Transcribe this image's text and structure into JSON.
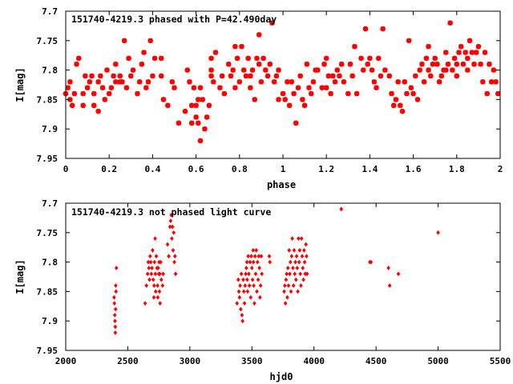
{
  "chart_data": [
    {
      "type": "scatter",
      "title": "151740-4219.3 phased with P=42.490day",
      "xlabel": "phase",
      "ylabel": "I[mag]",
      "xlim": [
        0,
        2
      ],
      "ylim": [
        7.95,
        7.7
      ],
      "y_inverted": true,
      "xticks": [
        0,
        0.2,
        0.4,
        0.6,
        0.8,
        1,
        1.2,
        1.4,
        1.6,
        1.8,
        2
      ],
      "xtick_labels": [
        "0",
        "0.2",
        "0.4",
        "0.6",
        "0.8",
        "1",
        "1.2",
        "1.4",
        "1.6",
        "1.8",
        "2"
      ],
      "yticks": [
        7.7,
        7.75,
        7.8,
        7.85,
        7.9,
        7.95
      ],
      "ytick_labels": [
        "7.7",
        "7.75",
        "7.8",
        "7.85",
        "7.9",
        "7.95"
      ],
      "grid": false,
      "marker": "star",
      "color": "#ff0000",
      "points": [
        [
          0.0,
          7.84
        ],
        [
          0.01,
          7.83
        ],
        [
          0.02,
          7.85
        ],
        [
          0.02,
          7.82
        ],
        [
          0.03,
          7.86
        ],
        [
          0.04,
          7.84
        ],
        [
          0.05,
          7.79
        ],
        [
          0.06,
          7.78
        ],
        [
          0.08,
          7.84
        ],
        [
          0.08,
          7.86
        ],
        [
          0.09,
          7.81
        ],
        [
          0.1,
          7.83
        ],
        [
          0.11,
          7.82
        ],
        [
          0.12,
          7.81
        ],
        [
          0.13,
          7.86
        ],
        [
          0.13,
          7.84
        ],
        [
          0.15,
          7.87
        ],
        [
          0.15,
          7.82
        ],
        [
          0.16,
          7.81
        ],
        [
          0.17,
          7.83
        ],
        [
          0.18,
          7.85
        ],
        [
          0.19,
          7.8
        ],
        [
          0.2,
          7.84
        ],
        [
          0.21,
          7.83
        ],
        [
          0.22,
          7.81
        ],
        [
          0.23,
          7.82
        ],
        [
          0.23,
          7.79
        ],
        [
          0.25,
          7.81
        ],
        [
          0.25,
          7.82
        ],
        [
          0.26,
          7.82
        ],
        [
          0.27,
          7.75
        ],
        [
          0.28,
          7.83
        ],
        [
          0.29,
          7.78
        ],
        [
          0.3,
          7.81
        ],
        [
          0.31,
          7.8
        ],
        [
          0.33,
          7.84
        ],
        [
          0.34,
          7.82
        ],
        [
          0.35,
          7.79
        ],
        [
          0.36,
          7.77
        ],
        [
          0.37,
          7.83
        ],
        [
          0.38,
          7.82
        ],
        [
          0.39,
          7.75
        ],
        [
          0.4,
          7.81
        ],
        [
          0.41,
          7.78
        ],
        [
          0.44,
          7.78
        ],
        [
          0.44,
          7.81
        ],
        [
          0.45,
          7.85
        ],
        [
          0.47,
          7.86
        ],
        [
          0.49,
          7.82
        ],
        [
          0.5,
          7.83
        ],
        [
          0.52,
          7.89
        ],
        [
          0.55,
          7.87
        ],
        [
          0.56,
          7.8
        ],
        [
          0.57,
          7.82
        ],
        [
          0.58,
          7.86
        ],
        [
          0.58,
          7.89
        ],
        [
          0.59,
          7.83
        ],
        [
          0.6,
          7.86
        ],
        [
          0.6,
          7.88
        ],
        [
          0.61,
          7.85
        ],
        [
          0.61,
          7.89
        ],
        [
          0.62,
          7.83
        ],
        [
          0.62,
          7.92
        ],
        [
          0.63,
          7.85
        ],
        [
          0.64,
          7.9
        ],
        [
          0.65,
          7.88
        ],
        [
          0.66,
          7.86
        ],
        [
          0.67,
          7.81
        ],
        [
          0.67,
          7.8
        ],
        [
          0.67,
          7.78
        ],
        [
          0.68,
          7.82
        ],
        [
          0.69,
          7.77
        ],
        [
          0.71,
          7.83
        ],
        [
          0.72,
          7.81
        ],
        [
          0.73,
          7.84
        ],
        [
          0.75,
          7.79
        ],
        [
          0.76,
          7.81
        ],
        [
          0.77,
          7.8
        ],
        [
          0.78,
          7.76
        ],
        [
          0.78,
          7.83
        ],
        [
          0.79,
          7.78
        ],
        [
          0.8,
          7.82
        ],
        [
          0.81,
          7.76
        ],
        [
          0.82,
          7.8
        ],
        [
          0.83,
          7.81
        ],
        [
          0.84,
          7.78
        ],
        [
          0.85,
          7.81
        ],
        [
          0.85,
          7.83
        ],
        [
          0.86,
          7.8
        ],
        [
          0.87,
          7.85
        ],
        [
          0.88,
          7.78
        ],
        [
          0.89,
          7.74
        ],
        [
          0.89,
          7.79
        ],
        [
          0.9,
          7.82
        ],
        [
          0.91,
          7.78
        ],
        [
          0.92,
          7.8
        ],
        [
          0.93,
          7.81
        ],
        [
          0.94,
          7.79
        ],
        [
          0.95,
          7.72
        ],
        [
          0.96,
          7.82
        ],
        [
          0.97,
          7.81
        ],
        [
          0.98,
          7.8
        ],
        [
          0.98,
          7.85
        ],
        [
          1.0,
          7.84
        ],
        [
          1.01,
          7.85
        ],
        [
          1.02,
          7.82
        ],
        [
          1.03,
          7.86
        ],
        [
          1.04,
          7.82
        ],
        [
          1.05,
          7.84
        ],
        [
          1.06,
          7.89
        ],
        [
          1.07,
          7.83
        ],
        [
          1.08,
          7.81
        ],
        [
          1.09,
          7.85
        ],
        [
          1.1,
          7.86
        ],
        [
          1.11,
          7.79
        ],
        [
          1.12,
          7.83
        ],
        [
          1.13,
          7.84
        ],
        [
          1.14,
          7.82
        ],
        [
          1.15,
          7.8
        ],
        [
          1.16,
          7.8
        ],
        [
          1.18,
          7.83
        ],
        [
          1.19,
          7.79
        ],
        [
          1.2,
          7.83
        ],
        [
          1.2,
          7.78
        ],
        [
          1.21,
          7.81
        ],
        [
          1.22,
          7.84
        ],
        [
          1.23,
          7.81
        ],
        [
          1.24,
          7.82
        ],
        [
          1.25,
          7.8
        ],
        [
          1.26,
          7.81
        ],
        [
          1.27,
          7.79
        ],
        [
          1.28,
          7.82
        ],
        [
          1.3,
          7.84
        ],
        [
          1.31,
          7.79
        ],
        [
          1.32,
          7.81
        ],
        [
          1.33,
          7.76
        ],
        [
          1.34,
          7.84
        ],
        [
          1.36,
          7.78
        ],
        [
          1.37,
          7.8
        ],
        [
          1.38,
          7.73
        ],
        [
          1.39,
          7.79
        ],
        [
          1.4,
          7.78
        ],
        [
          1.41,
          7.8
        ],
        [
          1.42,
          7.82
        ],
        [
          1.43,
          7.83
        ],
        [
          1.44,
          7.78
        ],
        [
          1.45,
          7.81
        ],
        [
          1.46,
          7.73
        ],
        [
          1.47,
          7.8
        ],
        [
          1.49,
          7.81
        ],
        [
          1.5,
          7.84
        ],
        [
          1.51,
          7.86
        ],
        [
          1.52,
          7.85
        ],
        [
          1.53,
          7.82
        ],
        [
          1.54,
          7.86
        ],
        [
          1.55,
          7.87
        ],
        [
          1.56,
          7.82
        ],
        [
          1.57,
          7.84
        ],
        [
          1.58,
          7.75
        ],
        [
          1.59,
          7.83
        ],
        [
          1.6,
          7.84
        ],
        [
          1.61,
          7.81
        ],
        [
          1.62,
          7.85
        ],
        [
          1.63,
          7.8
        ],
        [
          1.64,
          7.79
        ],
        [
          1.65,
          7.82
        ],
        [
          1.66,
          7.78
        ],
        [
          1.67,
          7.76
        ],
        [
          1.67,
          7.8
        ],
        [
          1.68,
          7.81
        ],
        [
          1.69,
          7.79
        ],
        [
          1.7,
          7.78
        ],
        [
          1.71,
          7.79
        ],
        [
          1.72,
          7.82
        ],
        [
          1.73,
          7.81
        ],
        [
          1.74,
          7.8
        ],
        [
          1.75,
          7.8
        ],
        [
          1.75,
          7.77
        ],
        [
          1.76,
          7.79
        ],
        [
          1.77,
          7.72
        ],
        [
          1.78,
          7.8
        ],
        [
          1.79,
          7.78
        ],
        [
          1.8,
          7.79
        ],
        [
          1.8,
          7.81
        ],
        [
          1.81,
          7.77
        ],
        [
          1.82,
          7.76
        ],
        [
          1.83,
          7.79
        ],
        [
          1.84,
          7.77
        ],
        [
          1.85,
          7.78
        ],
        [
          1.85,
          7.8
        ],
        [
          1.86,
          7.75
        ],
        [
          1.87,
          7.77
        ],
        [
          1.88,
          7.79
        ],
        [
          1.89,
          7.77
        ],
        [
          1.9,
          7.76
        ],
        [
          1.91,
          7.79
        ],
        [
          1.92,
          7.82
        ],
        [
          1.93,
          7.77
        ],
        [
          1.94,
          7.84
        ],
        [
          1.95,
          7.79
        ],
        [
          1.96,
          7.82
        ],
        [
          1.97,
          7.8
        ],
        [
          1.98,
          7.82
        ],
        [
          1.99,
          7.84
        ]
      ]
    },
    {
      "type": "scatter",
      "title": "151740-4219.3 not phased light curve",
      "xlabel": "hjd0",
      "ylabel": "I[mag]",
      "xlim": [
        2000,
        5500
      ],
      "ylim": [
        7.95,
        7.7
      ],
      "y_inverted": true,
      "xticks": [
        2000,
        2500,
        3000,
        3500,
        4000,
        4500,
        5000,
        5500
      ],
      "xtick_labels": [
        "2000",
        "2500",
        "3000",
        "3500",
        "4000",
        "4500",
        "5000",
        "5500"
      ],
      "yticks": [
        7.7,
        7.75,
        7.8,
        7.85,
        7.9,
        7.95
      ],
      "ytick_labels": [
        "7.7",
        "7.75",
        "7.8",
        "7.85",
        "7.9",
        "7.95"
      ],
      "grid": false,
      "marker": "diamond",
      "color": "#ff0000",
      "points": [
        [
          2390,
          7.86
        ],
        [
          2392,
          7.87
        ],
        [
          2395,
          7.89
        ],
        [
          2397,
          7.9
        ],
        [
          2399,
          7.91
        ],
        [
          2400,
          7.92
        ],
        [
          2402,
          7.88
        ],
        [
          2403,
          7.84
        ],
        [
          2405,
          7.85
        ],
        [
          2408,
          7.81
        ],
        [
          2640,
          7.87
        ],
        [
          2650,
          7.84
        ],
        [
          2660,
          7.82
        ],
        [
          2665,
          7.8
        ],
        [
          2670,
          7.81
        ],
        [
          2675,
          7.83
        ],
        [
          2680,
          7.79
        ],
        [
          2685,
          7.8
        ],
        [
          2690,
          7.82
        ],
        [
          2695,
          7.81
        ],
        [
          2700,
          7.78
        ],
        [
          2705,
          7.83
        ],
        [
          2710,
          7.86
        ],
        [
          2712,
          7.84
        ],
        [
          2715,
          7.8
        ],
        [
          2720,
          7.76
        ],
        [
          2722,
          7.82
        ],
        [
          2725,
          7.85
        ],
        [
          2730,
          7.79
        ],
        [
          2735,
          7.81
        ],
        [
          2740,
          7.84
        ],
        [
          2742,
          7.86
        ],
        [
          2745,
          7.81
        ],
        [
          2750,
          7.82
        ],
        [
          2752,
          7.8
        ],
        [
          2755,
          7.85
        ],
        [
          2758,
          7.82
        ],
        [
          2760,
          7.87
        ],
        [
          2765,
          7.8
        ],
        [
          2770,
          7.83
        ],
        [
          2780,
          7.84
        ],
        [
          2785,
          7.82
        ],
        [
          2820,
          7.77
        ],
        [
          2830,
          7.79
        ],
        [
          2840,
          7.74
        ],
        [
          2845,
          7.73
        ],
        [
          2850,
          7.72
        ],
        [
          2855,
          7.76
        ],
        [
          2860,
          7.74
        ],
        [
          2865,
          7.78
        ],
        [
          2870,
          7.75
        ],
        [
          2875,
          7.8
        ],
        [
          2880,
          7.79
        ],
        [
          2885,
          7.82
        ],
        [
          3380,
          7.87
        ],
        [
          3390,
          7.83
        ],
        [
          3395,
          7.85
        ],
        [
          3400,
          7.86
        ],
        [
          3405,
          7.84
        ],
        [
          3410,
          7.88
        ],
        [
          3415,
          7.82
        ],
        [
          3420,
          7.89
        ],
        [
          3425,
          7.9
        ],
        [
          3430,
          7.83
        ],
        [
          3435,
          7.85
        ],
        [
          3440,
          7.87
        ],
        [
          3445,
          7.84
        ],
        [
          3450,
          7.82
        ],
        [
          3455,
          7.81
        ],
        [
          3460,
          7.8
        ],
        [
          3462,
          7.83
        ],
        [
          3465,
          7.85
        ],
        [
          3470,
          7.79
        ],
        [
          3475,
          7.82
        ],
        [
          3480,
          7.84
        ],
        [
          3485,
          7.8
        ],
        [
          3490,
          7.86
        ],
        [
          3495,
          7.79
        ],
        [
          3500,
          7.81
        ],
        [
          3505,
          7.83
        ],
        [
          3510,
          7.78
        ],
        [
          3512,
          7.8
        ],
        [
          3515,
          7.84
        ],
        [
          3520,
          7.87
        ],
        [
          3525,
          7.79
        ],
        [
          3530,
          7.82
        ],
        [
          3535,
          7.78
        ],
        [
          3540,
          7.85
        ],
        [
          3545,
          7.8
        ],
        [
          3550,
          7.83
        ],
        [
          3555,
          7.79
        ],
        [
          3560,
          7.81
        ],
        [
          3565,
          7.86
        ],
        [
          3570,
          7.84
        ],
        [
          3575,
          7.79
        ],
        [
          3580,
          7.82
        ],
        [
          3640,
          7.79
        ],
        [
          3645,
          7.8
        ],
        [
          3760,
          7.85
        ],
        [
          3765,
          7.84
        ],
        [
          3770,
          7.87
        ],
        [
          3775,
          7.83
        ],
        [
          3780,
          7.82
        ],
        [
          3785,
          7.86
        ],
        [
          3790,
          7.81
        ],
        [
          3795,
          7.84
        ],
        [
          3800,
          7.78
        ],
        [
          3805,
          7.82
        ],
        [
          3810,
          7.8
        ],
        [
          3815,
          7.85
        ],
        [
          3820,
          7.79
        ],
        [
          3825,
          7.76
        ],
        [
          3830,
          7.81
        ],
        [
          3835,
          7.84
        ],
        [
          3840,
          7.78
        ],
        [
          3845,
          7.82
        ],
        [
          3850,
          7.8
        ],
        [
          3855,
          7.83
        ],
        [
          3860,
          7.79
        ],
        [
          3865,
          7.81
        ],
        [
          3870,
          7.85
        ],
        [
          3875,
          7.76
        ],
        [
          3880,
          7.8
        ],
        [
          3885,
          7.78
        ],
        [
          3890,
          7.82
        ],
        [
          3895,
          7.84
        ],
        [
          3900,
          7.76
        ],
        [
          3905,
          7.79
        ],
        [
          3910,
          7.81
        ],
        [
          3915,
          7.83
        ],
        [
          3920,
          7.78
        ],
        [
          3925,
          7.8
        ],
        [
          3930,
          7.82
        ],
        [
          3935,
          7.77
        ],
        [
          3940,
          7.79
        ],
        [
          3945,
          7.82
        ],
        [
          4220,
          7.71
        ],
        [
          4450,
          7.8
        ],
        [
          4460,
          7.8
        ],
        [
          4600,
          7.81
        ],
        [
          4610,
          7.84
        ],
        [
          4680,
          7.82
        ],
        [
          5000,
          7.75
        ]
      ]
    }
  ]
}
